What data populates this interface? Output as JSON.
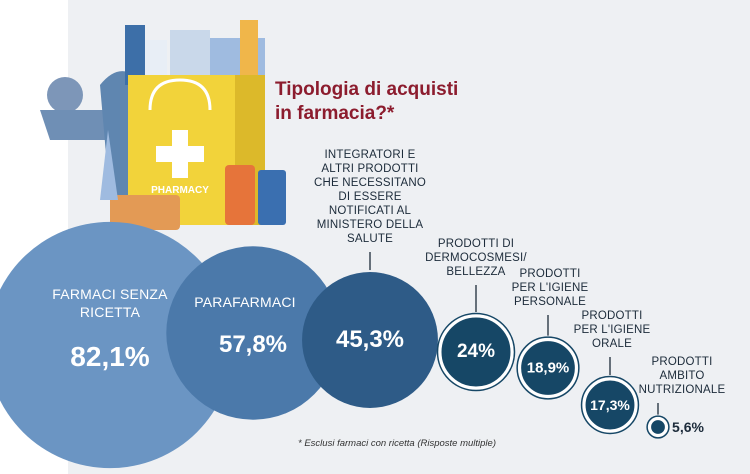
{
  "chart_data": {
    "type": "bubble",
    "title": "Tipologia di acquisti in farmacia?*",
    "note": "* Esclusi farmaci con ricetta (Risposte multiple)",
    "categories": [
      "FARMACI SENZA\nRICETTA",
      "PARAFARMACI",
      "INTEGRATORI E\nALTRI PRODOTTI\nCHE NECESSITANO\nDI ESSERE\nNOTIFICATI AL\nMINISTERO DELLA\nSALUTE",
      "PRODOTTI DI\nDERMOCOSMESI/\nBELLEZZA",
      "PRODOTTI\nPER L'IGIENE\nPERSONALE",
      "PRODOTTI\nPER L'IGIENE\nORALE",
      "PRODOTTI\nAMBITO\nNUTRIZIONALE"
    ],
    "values": [
      82.1,
      57.8,
      45.3,
      24,
      18.9,
      17.3,
      5.6
    ],
    "value_labels": [
      "82,1%",
      "57,8%",
      "45,3%",
      "24%",
      "18,9%",
      "17,3%",
      "5,6%"
    ],
    "colors": [
      "#6b95c3",
      "#4b79aa",
      "#2e5b87",
      "#164766",
      "#164766",
      "#164766",
      "#164766"
    ]
  }
}
